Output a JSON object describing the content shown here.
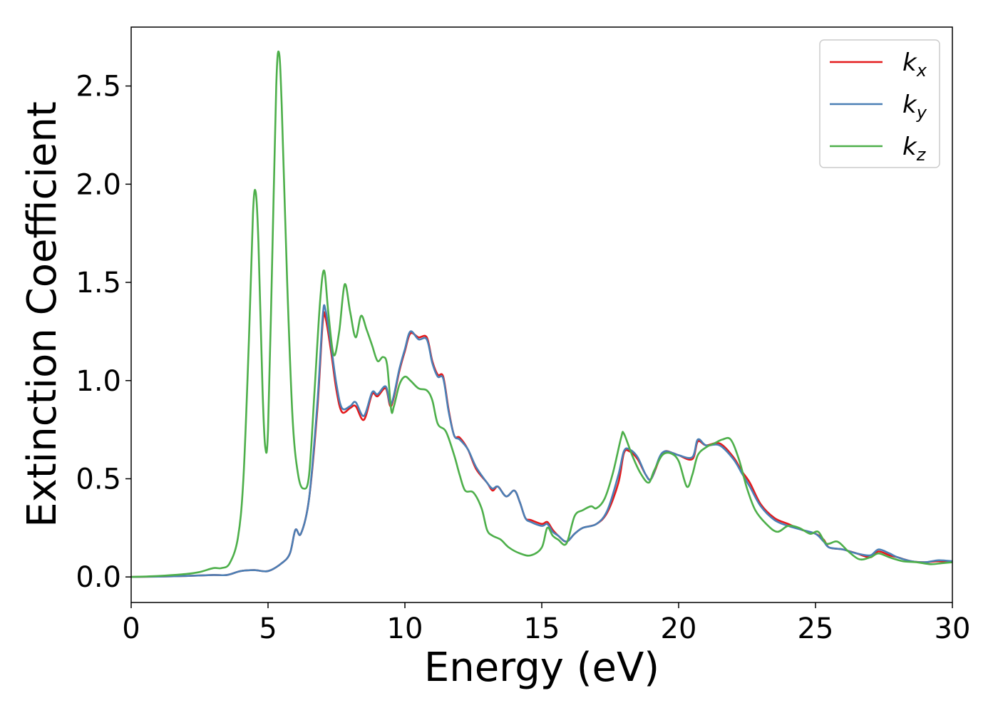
{
  "chart_data": {
    "type": "line",
    "xlabel": "Energy (eV)",
    "ylabel": "Extinction Coefficient",
    "xlim": [
      0,
      30
    ],
    "ylim": [
      -0.13,
      2.8
    ],
    "xticks": [
      0,
      5,
      10,
      15,
      20,
      25,
      30
    ],
    "yticks": [
      0.0,
      0.5,
      1.0,
      1.5,
      2.0,
      2.5
    ],
    "xtick_labels": [
      "0",
      "5",
      "10",
      "15",
      "20",
      "25",
      "30"
    ],
    "ytick_labels": [
      "0.0",
      "0.5",
      "1.0",
      "1.5",
      "2.0",
      "2.5"
    ],
    "grid": false,
    "legend_position": "top-right",
    "series": [
      {
        "name": "k_x",
        "label_main": "k",
        "label_sub": "x",
        "color": "#e41a1c",
        "points": [
          [
            0,
            0.0
          ],
          [
            1,
            0.002
          ],
          [
            2,
            0.005
          ],
          [
            3,
            0.01
          ],
          [
            3.5,
            0.01
          ],
          [
            4,
            0.03
          ],
          [
            4.5,
            0.035
          ],
          [
            5,
            0.03
          ],
          [
            5.5,
            0.07
          ],
          [
            5.8,
            0.12
          ],
          [
            6.0,
            0.24
          ],
          [
            6.2,
            0.22
          ],
          [
            6.5,
            0.4
          ],
          [
            6.8,
            0.85
          ],
          [
            7.0,
            1.3
          ],
          [
            7.1,
            1.32
          ],
          [
            7.3,
            1.15
          ],
          [
            7.5,
            0.95
          ],
          [
            7.7,
            0.84
          ],
          [
            8.0,
            0.86
          ],
          [
            8.2,
            0.87
          ],
          [
            8.5,
            0.8
          ],
          [
            8.8,
            0.93
          ],
          [
            9.0,
            0.92
          ],
          [
            9.3,
            0.96
          ],
          [
            9.5,
            0.87
          ],
          [
            9.8,
            1.05
          ],
          [
            10.0,
            1.15
          ],
          [
            10.2,
            1.24
          ],
          [
            10.5,
            1.22
          ],
          [
            10.8,
            1.22
          ],
          [
            11.0,
            1.1
          ],
          [
            11.2,
            1.03
          ],
          [
            11.4,
            1.02
          ],
          [
            11.6,
            0.85
          ],
          [
            11.8,
            0.72
          ],
          [
            12.0,
            0.71
          ],
          [
            12.3,
            0.65
          ],
          [
            12.6,
            0.55
          ],
          [
            13.0,
            0.48
          ],
          [
            13.2,
            0.44
          ],
          [
            13.4,
            0.46
          ],
          [
            13.7,
            0.41
          ],
          [
            14.0,
            0.44
          ],
          [
            14.2,
            0.38
          ],
          [
            14.4,
            0.3
          ],
          [
            14.6,
            0.29
          ],
          [
            15.0,
            0.27
          ],
          [
            15.2,
            0.28
          ],
          [
            15.4,
            0.24
          ],
          [
            15.6,
            0.21
          ],
          [
            15.9,
            0.18
          ],
          [
            16.2,
            0.22
          ],
          [
            16.5,
            0.25
          ],
          [
            17.0,
            0.27
          ],
          [
            17.4,
            0.33
          ],
          [
            17.8,
            0.48
          ],
          [
            18.0,
            0.63
          ],
          [
            18.2,
            0.64
          ],
          [
            18.5,
            0.6
          ],
          [
            18.8,
            0.52
          ],
          [
            19.0,
            0.5
          ],
          [
            19.3,
            0.6
          ],
          [
            19.5,
            0.64
          ],
          [
            19.8,
            0.63
          ],
          [
            20.0,
            0.62
          ],
          [
            20.5,
            0.6
          ],
          [
            20.7,
            0.69
          ],
          [
            21.0,
            0.67
          ],
          [
            21.5,
            0.68
          ],
          [
            22.0,
            0.61
          ],
          [
            22.3,
            0.54
          ],
          [
            22.6,
            0.48
          ],
          [
            23.0,
            0.37
          ],
          [
            23.5,
            0.3
          ],
          [
            24.0,
            0.27
          ],
          [
            24.5,
            0.24
          ],
          [
            25.0,
            0.22
          ],
          [
            25.3,
            0.19
          ],
          [
            25.5,
            0.15
          ],
          [
            26.0,
            0.14
          ],
          [
            26.5,
            0.12
          ],
          [
            27.0,
            0.1
          ],
          [
            27.3,
            0.13
          ],
          [
            27.7,
            0.11
          ],
          [
            28.0,
            0.1
          ],
          [
            28.5,
            0.08
          ],
          [
            29.0,
            0.075
          ],
          [
            29.5,
            0.08
          ],
          [
            30,
            0.075
          ]
        ]
      },
      {
        "name": "k_y",
        "label_main": "k",
        "label_sub": "y",
        "color": "#4a7fb5",
        "points": [
          [
            0,
            0.0
          ],
          [
            1,
            0.002
          ],
          [
            2,
            0.005
          ],
          [
            3,
            0.01
          ],
          [
            3.5,
            0.01
          ],
          [
            4,
            0.03
          ],
          [
            4.5,
            0.035
          ],
          [
            5,
            0.03
          ],
          [
            5.5,
            0.07
          ],
          [
            5.8,
            0.12
          ],
          [
            6.0,
            0.24
          ],
          [
            6.2,
            0.22
          ],
          [
            6.5,
            0.4
          ],
          [
            6.8,
            0.88
          ],
          [
            7.0,
            1.33
          ],
          [
            7.1,
            1.36
          ],
          [
            7.3,
            1.18
          ],
          [
            7.5,
            0.98
          ],
          [
            7.7,
            0.86
          ],
          [
            8.0,
            0.87
          ],
          [
            8.2,
            0.89
          ],
          [
            8.5,
            0.82
          ],
          [
            8.8,
            0.94
          ],
          [
            9.0,
            0.93
          ],
          [
            9.3,
            0.97
          ],
          [
            9.5,
            0.88
          ],
          [
            9.8,
            1.06
          ],
          [
            10.0,
            1.16
          ],
          [
            10.2,
            1.25
          ],
          [
            10.5,
            1.21
          ],
          [
            10.8,
            1.21
          ],
          [
            11.0,
            1.09
          ],
          [
            11.2,
            1.02
          ],
          [
            11.4,
            1.01
          ],
          [
            11.6,
            0.84
          ],
          [
            11.8,
            0.72
          ],
          [
            12.0,
            0.7
          ],
          [
            12.3,
            0.65
          ],
          [
            12.6,
            0.56
          ],
          [
            13.0,
            0.48
          ],
          [
            13.2,
            0.45
          ],
          [
            13.4,
            0.46
          ],
          [
            13.7,
            0.41
          ],
          [
            14.0,
            0.44
          ],
          [
            14.2,
            0.38
          ],
          [
            14.4,
            0.3
          ],
          [
            14.6,
            0.28
          ],
          [
            15.0,
            0.26
          ],
          [
            15.2,
            0.27
          ],
          [
            15.4,
            0.23
          ],
          [
            15.6,
            0.21
          ],
          [
            15.9,
            0.18
          ],
          [
            16.2,
            0.22
          ],
          [
            16.5,
            0.25
          ],
          [
            17.0,
            0.27
          ],
          [
            17.4,
            0.34
          ],
          [
            17.8,
            0.52
          ],
          [
            18.0,
            0.64
          ],
          [
            18.2,
            0.65
          ],
          [
            18.5,
            0.61
          ],
          [
            18.8,
            0.52
          ],
          [
            19.0,
            0.5
          ],
          [
            19.3,
            0.61
          ],
          [
            19.5,
            0.64
          ],
          [
            19.8,
            0.63
          ],
          [
            20.0,
            0.62
          ],
          [
            20.5,
            0.61
          ],
          [
            20.7,
            0.7
          ],
          [
            21.0,
            0.67
          ],
          [
            21.5,
            0.67
          ],
          [
            22.0,
            0.6
          ],
          [
            22.3,
            0.53
          ],
          [
            22.6,
            0.46
          ],
          [
            23.0,
            0.36
          ],
          [
            23.5,
            0.29
          ],
          [
            24.0,
            0.26
          ],
          [
            24.5,
            0.24
          ],
          [
            25.0,
            0.22
          ],
          [
            25.3,
            0.18
          ],
          [
            25.5,
            0.15
          ],
          [
            26.0,
            0.14
          ],
          [
            26.5,
            0.12
          ],
          [
            27.0,
            0.11
          ],
          [
            27.3,
            0.14
          ],
          [
            27.7,
            0.12
          ],
          [
            28.0,
            0.1
          ],
          [
            28.5,
            0.08
          ],
          [
            29.0,
            0.075
          ],
          [
            29.5,
            0.085
          ],
          [
            30,
            0.08
          ]
        ]
      },
      {
        "name": "k_z",
        "label_main": "k",
        "label_sub": "z",
        "color": "#4daf4a",
        "points": [
          [
            0,
            0.0
          ],
          [
            1,
            0.005
          ],
          [
            2,
            0.015
          ],
          [
            2.5,
            0.025
          ],
          [
            3.0,
            0.045
          ],
          [
            3.3,
            0.045
          ],
          [
            3.6,
            0.07
          ],
          [
            3.9,
            0.2
          ],
          [
            4.1,
            0.5
          ],
          [
            4.3,
            1.2
          ],
          [
            4.45,
            1.85
          ],
          [
            4.55,
            1.96
          ],
          [
            4.65,
            1.7
          ],
          [
            4.8,
            0.95
          ],
          [
            4.9,
            0.66
          ],
          [
            5.0,
            0.75
          ],
          [
            5.15,
            1.6
          ],
          [
            5.3,
            2.5
          ],
          [
            5.4,
            2.67
          ],
          [
            5.5,
            2.4
          ],
          [
            5.7,
            1.5
          ],
          [
            5.9,
            0.8
          ],
          [
            6.1,
            0.52
          ],
          [
            6.3,
            0.45
          ],
          [
            6.5,
            0.52
          ],
          [
            6.7,
            0.95
          ],
          [
            6.9,
            1.4
          ],
          [
            7.05,
            1.56
          ],
          [
            7.2,
            1.35
          ],
          [
            7.4,
            1.13
          ],
          [
            7.6,
            1.25
          ],
          [
            7.8,
            1.49
          ],
          [
            8.0,
            1.35
          ],
          [
            8.2,
            1.22
          ],
          [
            8.4,
            1.33
          ],
          [
            8.6,
            1.26
          ],
          [
            8.8,
            1.18
          ],
          [
            9.0,
            1.1
          ],
          [
            9.2,
            1.12
          ],
          [
            9.35,
            1.08
          ],
          [
            9.5,
            0.85
          ],
          [
            9.6,
            0.87
          ],
          [
            9.8,
            0.98
          ],
          [
            10.0,
            1.02
          ],
          [
            10.2,
            1.0
          ],
          [
            10.5,
            0.96
          ],
          [
            10.8,
            0.95
          ],
          [
            11.0,
            0.9
          ],
          [
            11.2,
            0.78
          ],
          [
            11.5,
            0.74
          ],
          [
            11.8,
            0.62
          ],
          [
            12.0,
            0.52
          ],
          [
            12.2,
            0.44
          ],
          [
            12.5,
            0.43
          ],
          [
            12.8,
            0.35
          ],
          [
            13.0,
            0.24
          ],
          [
            13.2,
            0.21
          ],
          [
            13.5,
            0.19
          ],
          [
            13.8,
            0.15
          ],
          [
            14.2,
            0.12
          ],
          [
            14.6,
            0.11
          ],
          [
            15.0,
            0.15
          ],
          [
            15.2,
            0.25
          ],
          [
            15.4,
            0.21
          ],
          [
            15.6,
            0.19
          ],
          [
            15.9,
            0.17
          ],
          [
            16.2,
            0.31
          ],
          [
            16.5,
            0.34
          ],
          [
            16.8,
            0.36
          ],
          [
            17.0,
            0.35
          ],
          [
            17.3,
            0.4
          ],
          [
            17.6,
            0.53
          ],
          [
            17.9,
            0.71
          ],
          [
            18.0,
            0.73
          ],
          [
            18.3,
            0.62
          ],
          [
            18.6,
            0.53
          ],
          [
            18.9,
            0.48
          ],
          [
            19.1,
            0.54
          ],
          [
            19.4,
            0.62
          ],
          [
            19.7,
            0.63
          ],
          [
            20.0,
            0.59
          ],
          [
            20.3,
            0.46
          ],
          [
            20.5,
            0.52
          ],
          [
            20.7,
            0.62
          ],
          [
            21.0,
            0.66
          ],
          [
            21.3,
            0.68
          ],
          [
            21.6,
            0.7
          ],
          [
            21.9,
            0.7
          ],
          [
            22.2,
            0.6
          ],
          [
            22.5,
            0.45
          ],
          [
            22.8,
            0.34
          ],
          [
            23.2,
            0.27
          ],
          [
            23.6,
            0.23
          ],
          [
            24.0,
            0.26
          ],
          [
            24.4,
            0.25
          ],
          [
            24.8,
            0.22
          ],
          [
            25.1,
            0.23
          ],
          [
            25.4,
            0.17
          ],
          [
            25.8,
            0.18
          ],
          [
            26.2,
            0.13
          ],
          [
            26.6,
            0.09
          ],
          [
            27.0,
            0.1
          ],
          [
            27.3,
            0.12
          ],
          [
            27.7,
            0.1
          ],
          [
            28.2,
            0.08
          ],
          [
            28.7,
            0.075
          ],
          [
            29.2,
            0.065
          ],
          [
            29.6,
            0.07
          ],
          [
            30,
            0.075
          ]
        ]
      }
    ]
  }
}
